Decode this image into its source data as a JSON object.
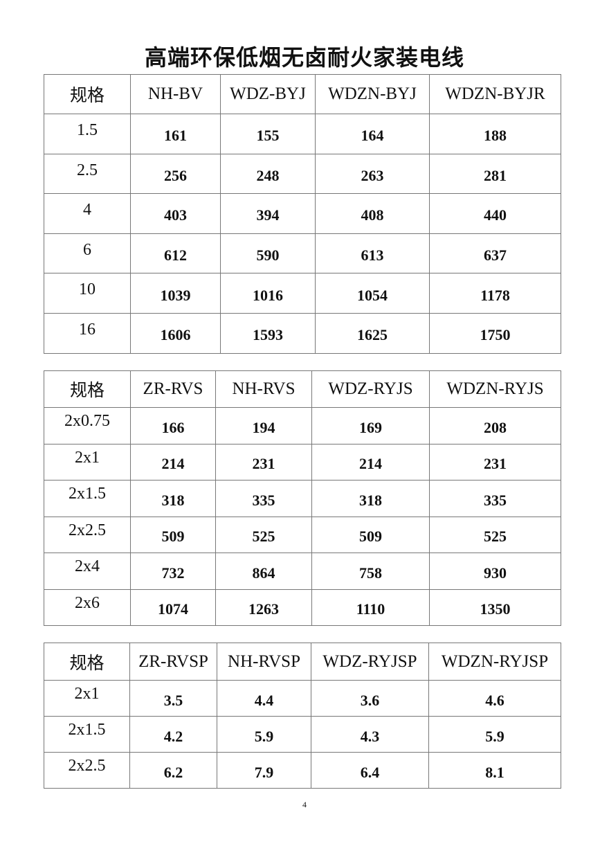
{
  "title": "高端环保低烟无卤耐火家装电线",
  "tables": [
    {
      "headers": [
        "规格",
        "NH-BV",
        "WDZ-BYJ",
        "WDZN-BYJ",
        "WDZN-BYJR"
      ],
      "col_widths": [
        125,
        130,
        137,
        165,
        190
      ],
      "rows": [
        [
          "1.5",
          "161",
          "155",
          "164",
          "188"
        ],
        [
          "2.5",
          "256",
          "248",
          "263",
          "281"
        ],
        [
          "4",
          "403",
          "394",
          "408",
          "440"
        ],
        [
          "6",
          "612",
          "590",
          "613",
          "637"
        ],
        [
          "10",
          "1039",
          "1016",
          "1054",
          "1178"
        ],
        [
          "16",
          "1606",
          "1593",
          "1625",
          "1750"
        ]
      ]
    },
    {
      "headers": [
        "规格",
        "ZR-RVS",
        "NH-RVS",
        "WDZ-RYJS",
        "WDZN-RYJS"
      ],
      "col_widths": [
        125,
        123,
        139,
        170,
        190
      ],
      "rows": [
        [
          "2x0.75",
          "166",
          "194",
          "169",
          "208"
        ],
        [
          "2x1",
          "214",
          "231",
          "214",
          "231"
        ],
        [
          "2x1.5",
          "318",
          "335",
          "318",
          "335"
        ],
        [
          "2x2.5",
          "509",
          "525",
          "509",
          "525"
        ],
        [
          "2x4",
          "732",
          "864",
          "758",
          "930"
        ],
        [
          "2x6",
          "1074",
          "1263",
          "1110",
          "1350"
        ]
      ]
    },
    {
      "headers": [
        "规格",
        "ZR-RVSP",
        "NH-RVSP",
        "WDZ-RYJSP",
        "WDZN-RYJSP"
      ],
      "col_widths": [
        124,
        126,
        136,
        170,
        191
      ],
      "rows": [
        [
          "2x1",
          "3.5",
          "4.4",
          "3.6",
          "4.6"
        ],
        [
          "2x1.5",
          "4.2",
          "5.9",
          "4.3",
          "5.9"
        ],
        [
          "2x2.5",
          "6.2",
          "7.9",
          "6.4",
          "8.1"
        ]
      ]
    }
  ],
  "page_number": "4"
}
